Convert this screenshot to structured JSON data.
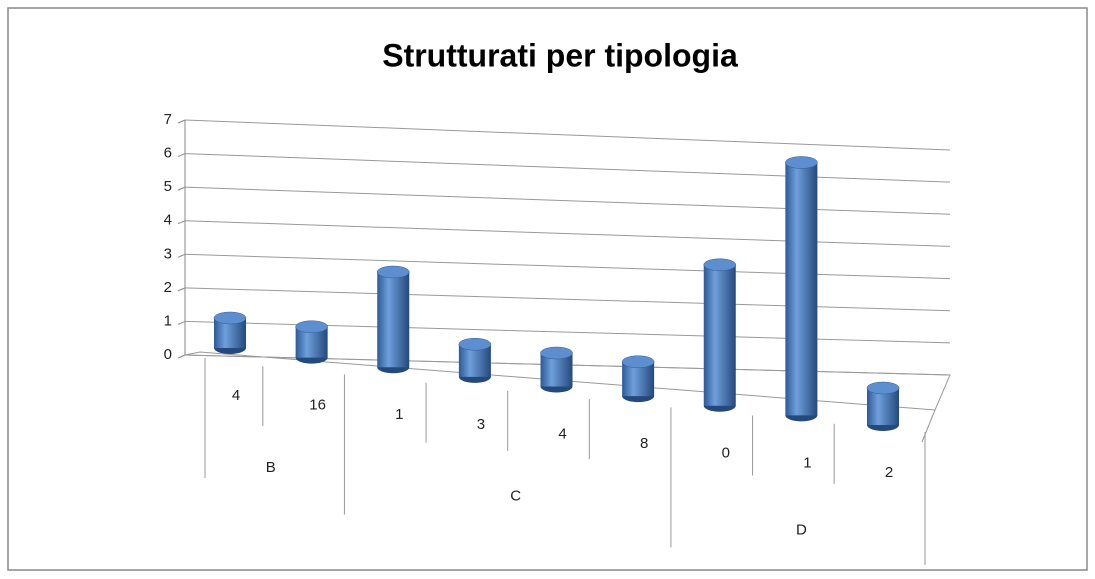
{
  "chart_data": {
    "type": "bar",
    "title": "Strutturati per tipologia",
    "groups": [
      {
        "name": "B",
        "categories": [
          "4",
          "16"
        ],
        "values": [
          1,
          1
        ]
      },
      {
        "name": "C",
        "categories": [
          "1",
          "3",
          "4",
          "8"
        ],
        "values": [
          3,
          1,
          1,
          1
        ]
      },
      {
        "name": "D",
        "categories": [
          "0",
          "1",
          "2"
        ],
        "values": [
          4,
          7,
          1
        ]
      }
    ],
    "color": "#4a7ebb",
    "ylim": [
      0,
      7
    ],
    "yticks": [
      0,
      1,
      2,
      3,
      4,
      5,
      6,
      7
    ],
    "grid": true
  }
}
